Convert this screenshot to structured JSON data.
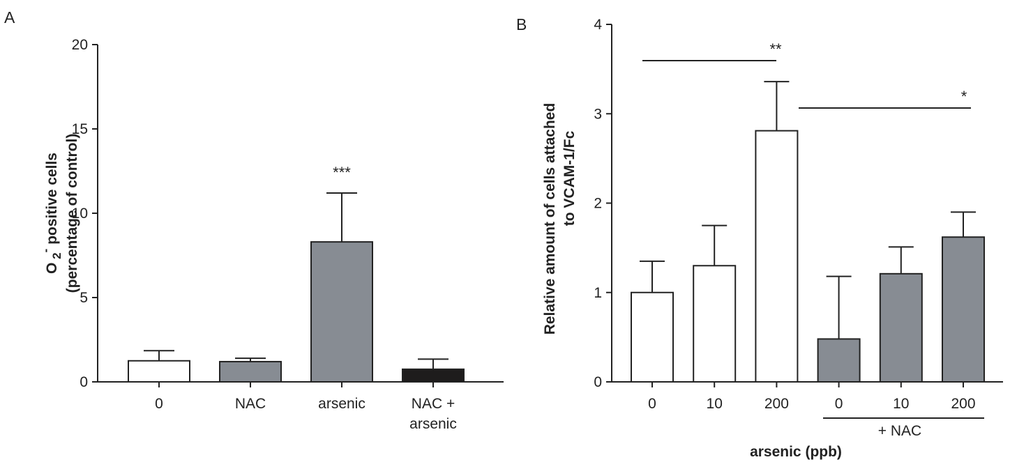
{
  "chart_data": [
    {
      "type": "bar",
      "panel_label": "A",
      "title": "",
      "xlabel": "",
      "ylabel": "O2- positive cells (percentage of control)",
      "ylabel_parts": {
        "o": "O",
        "sub": "2",
        "sup": "-",
        "rest": "positive cells",
        "line2": "(percentage of control)"
      },
      "ylim": [
        0,
        20
      ],
      "yticks": [
        0,
        5,
        10,
        15,
        20
      ],
      "grid": false,
      "categories": [
        {
          "lines": [
            "0"
          ]
        },
        {
          "lines": [
            "NAC"
          ]
        },
        {
          "lines": [
            "arsenic"
          ]
        },
        {
          "lines": [
            "NAC +",
            "arsenic"
          ]
        }
      ],
      "values": [
        1.25,
        1.2,
        8.3,
        0.75
      ],
      "errors": [
        0.6,
        0.2,
        2.9,
        0.6
      ],
      "colors": [
        "#ffffff",
        "#878c93",
        "#878c93",
        "#1e1c1c"
      ],
      "annotations": [
        {
          "text": "***",
          "category_index": 2
        }
      ]
    },
    {
      "type": "bar",
      "panel_label": "B",
      "title": "",
      "xlabel": "arsenic (ppb)",
      "ylabel": "Relative amount of cells attached to VCAM-1/Fc",
      "ylabel_lines": [
        "Relative amount of cells attached",
        "to VCAM-1/Fc"
      ],
      "ylim": [
        0,
        4
      ],
      "yticks": [
        0,
        1,
        2,
        3,
        4
      ],
      "grid": false,
      "categories": [
        "0",
        "10",
        "200",
        "0",
        "10",
        "200"
      ],
      "values": [
        1.0,
        1.3,
        2.81,
        0.48,
        1.21,
        1.62
      ],
      "errors": [
        0.35,
        0.45,
        0.55,
        0.7,
        0.3,
        0.28
      ],
      "colors": [
        "#ffffff",
        "#ffffff",
        "#ffffff",
        "#878c93",
        "#878c93",
        "#878c93"
      ],
      "group_bracket": {
        "label": "+ NAC",
        "from_index": 3,
        "to_index": 5
      },
      "significance": [
        {
          "text": "**",
          "from_index": 0,
          "to_index": 2
        },
        {
          "text": "*",
          "from_index": 2,
          "to_index": 5
        }
      ]
    }
  ]
}
